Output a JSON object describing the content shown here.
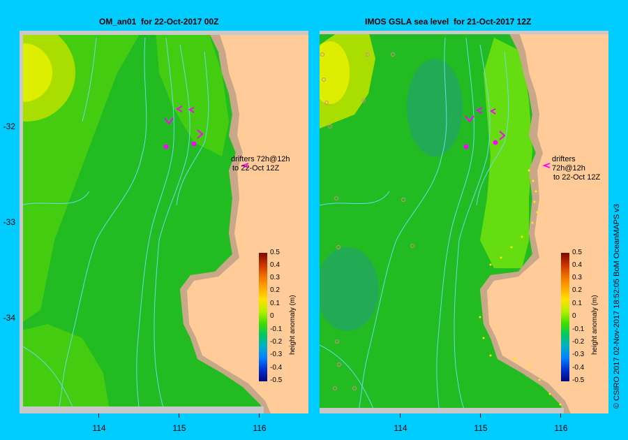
{
  "left_panel": {
    "title": "OM_an01  for 22-Oct-2017 00Z",
    "drifter_note": [
      "drifters 72h@12h",
      "to 22-Oct 12Z"
    ],
    "colorbar": {
      "label": "height anomaly (m)",
      "ticks": [
        "0.5",
        "0.4",
        "0.3",
        "0.2",
        "0.1",
        "0",
        "-0.1",
        "-0.2",
        "-0.3",
        "-0.4",
        "-0.5"
      ]
    }
  },
  "right_panel": {
    "title": "IMOS GSLA sea level  for 21-Oct-2017 12Z",
    "drifter_note": [
      "drifters 72h@12h",
      "to 22-Oct 12Z"
    ],
    "colorbar": {
      "label": "height anomaly (m)",
      "ticks": [
        "0.5",
        "0.4",
        "0.3",
        "0.2",
        "0.1",
        "0",
        "-0.1",
        "-0.2",
        "-0.3",
        "-0.4",
        "-0.5"
      ]
    }
  },
  "y_axis_labels": [
    "-32",
    "-33",
    "-34"
  ],
  "x_axis_labels": [
    "114",
    "115",
    "116"
  ],
  "credit": "© CSIRO 2017   02-Nov-2017 18:52:05 BoM OceanMAPS v3",
  "colors": {
    "background": "#00ccff",
    "land": "#ffcc99",
    "coast_shelf": "#c8a888",
    "anomaly_low": "#22bb22",
    "anomaly_zero": "#33cc11",
    "anomaly_high": "#ddee00",
    "drifter_marker": "#ff00ff",
    "bathymetry_contour": "#66ddee"
  }
}
